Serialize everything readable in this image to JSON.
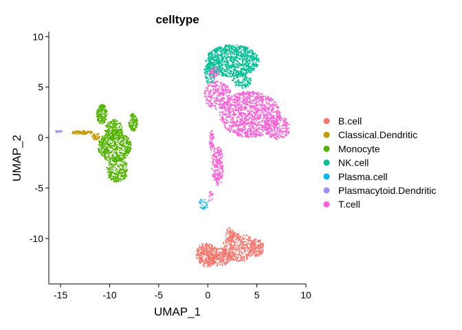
{
  "chart_data": {
    "type": "scatter",
    "title": "celltype",
    "xlabel": "UMAP_1",
    "ylabel": "UMAP_2",
    "xlim": [
      -16.2,
      10.0
    ],
    "ylim": [
      -14.5,
      10.5
    ],
    "xticks": [
      -15,
      -10,
      -5,
      0,
      5,
      10
    ],
    "yticks": [
      -10,
      -5,
      0,
      5,
      10
    ],
    "grid": false,
    "legend_position": "right",
    "series": [
      {
        "name": "B.cell",
        "color": "#F8766D",
        "clusters": [
          {
            "cx": -0.1,
            "cy": -11.6,
            "rx": 1.1,
            "ry": 1.2,
            "n": 260
          },
          {
            "cx": 1.2,
            "cy": -11.8,
            "rx": 1.3,
            "ry": 0.9,
            "n": 220
          },
          {
            "cx": 3.2,
            "cy": -10.9,
            "rx": 1.7,
            "ry": 1.4,
            "n": 330
          },
          {
            "cx": 5.0,
            "cy": -10.9,
            "rx": 0.7,
            "ry": 0.9,
            "n": 120
          },
          {
            "cx": 2.3,
            "cy": -9.6,
            "rx": 0.5,
            "ry": 0.7,
            "n": 60
          }
        ]
      },
      {
        "name": "Classical.Dendritic",
        "color": "#C49A00",
        "clusters": [
          {
            "cx": -12.8,
            "cy": 0.5,
            "rx": 1.1,
            "ry": 0.18,
            "n": 70
          },
          {
            "cx": -11.4,
            "cy": 0.1,
            "rx": 0.4,
            "ry": 0.35,
            "n": 35
          }
        ]
      },
      {
        "name": "Monocyte",
        "color": "#53B400",
        "clusters": [
          {
            "cx": -10.8,
            "cy": 2.3,
            "rx": 0.55,
            "ry": 1.0,
            "n": 160
          },
          {
            "cx": -9.6,
            "cy": 0.8,
            "rx": 0.9,
            "ry": 1.0,
            "n": 180
          },
          {
            "cx": -7.6,
            "cy": 1.5,
            "rx": 0.45,
            "ry": 0.9,
            "n": 110
          },
          {
            "cx": -9.5,
            "cy": -0.9,
            "rx": 1.7,
            "ry": 1.5,
            "n": 520
          },
          {
            "cx": -9.2,
            "cy": -3.2,
            "rx": 1.1,
            "ry": 1.3,
            "n": 240
          }
        ]
      },
      {
        "name": "NK.cell",
        "color": "#00C094",
        "clusters": [
          {
            "cx": 2.5,
            "cy": 7.6,
            "rx": 2.7,
            "ry": 1.6,
            "n": 900
          },
          {
            "cx": 0.2,
            "cy": 6.4,
            "rx": 0.6,
            "ry": 1.1,
            "n": 100
          },
          {
            "cx": 3.5,
            "cy": 5.6,
            "rx": 1.0,
            "ry": 0.7,
            "n": 90
          }
        ]
      },
      {
        "name": "Plasma.cell",
        "color": "#00B6EB",
        "clusters": [
          {
            "cx": -0.4,
            "cy": -6.5,
            "rx": 0.45,
            "ry": 0.6,
            "n": 25
          }
        ]
      },
      {
        "name": "Plasmacytoid.Dendritic",
        "color": "#A58AFF",
        "clusters": [
          {
            "cx": -15.2,
            "cy": 0.6,
            "rx": 0.35,
            "ry": 0.15,
            "n": 14
          }
        ]
      },
      {
        "name": "T.cell",
        "color": "#FB61D7",
        "clusters": [
          {
            "cx": 4.3,
            "cy": 2.3,
            "rx": 3.1,
            "ry": 2.3,
            "n": 1100
          },
          {
            "cx": 7.1,
            "cy": 1.0,
            "rx": 1.3,
            "ry": 1.2,
            "n": 200
          },
          {
            "cx": 1.0,
            "cy": 4.2,
            "rx": 1.4,
            "ry": 1.4,
            "n": 260
          },
          {
            "cx": 0.6,
            "cy": 6.4,
            "rx": 0.45,
            "ry": 0.6,
            "n": 40
          },
          {
            "cx": 1.0,
            "cy": -2.8,
            "rx": 0.6,
            "ry": 2.0,
            "n": 200
          },
          {
            "cx": 0.4,
            "cy": -0.3,
            "rx": 0.25,
            "ry": 1.0,
            "n": 50
          },
          {
            "cx": 0.3,
            "cy": -5.8,
            "rx": 0.3,
            "ry": 0.5,
            "n": 14
          }
        ]
      }
    ]
  }
}
